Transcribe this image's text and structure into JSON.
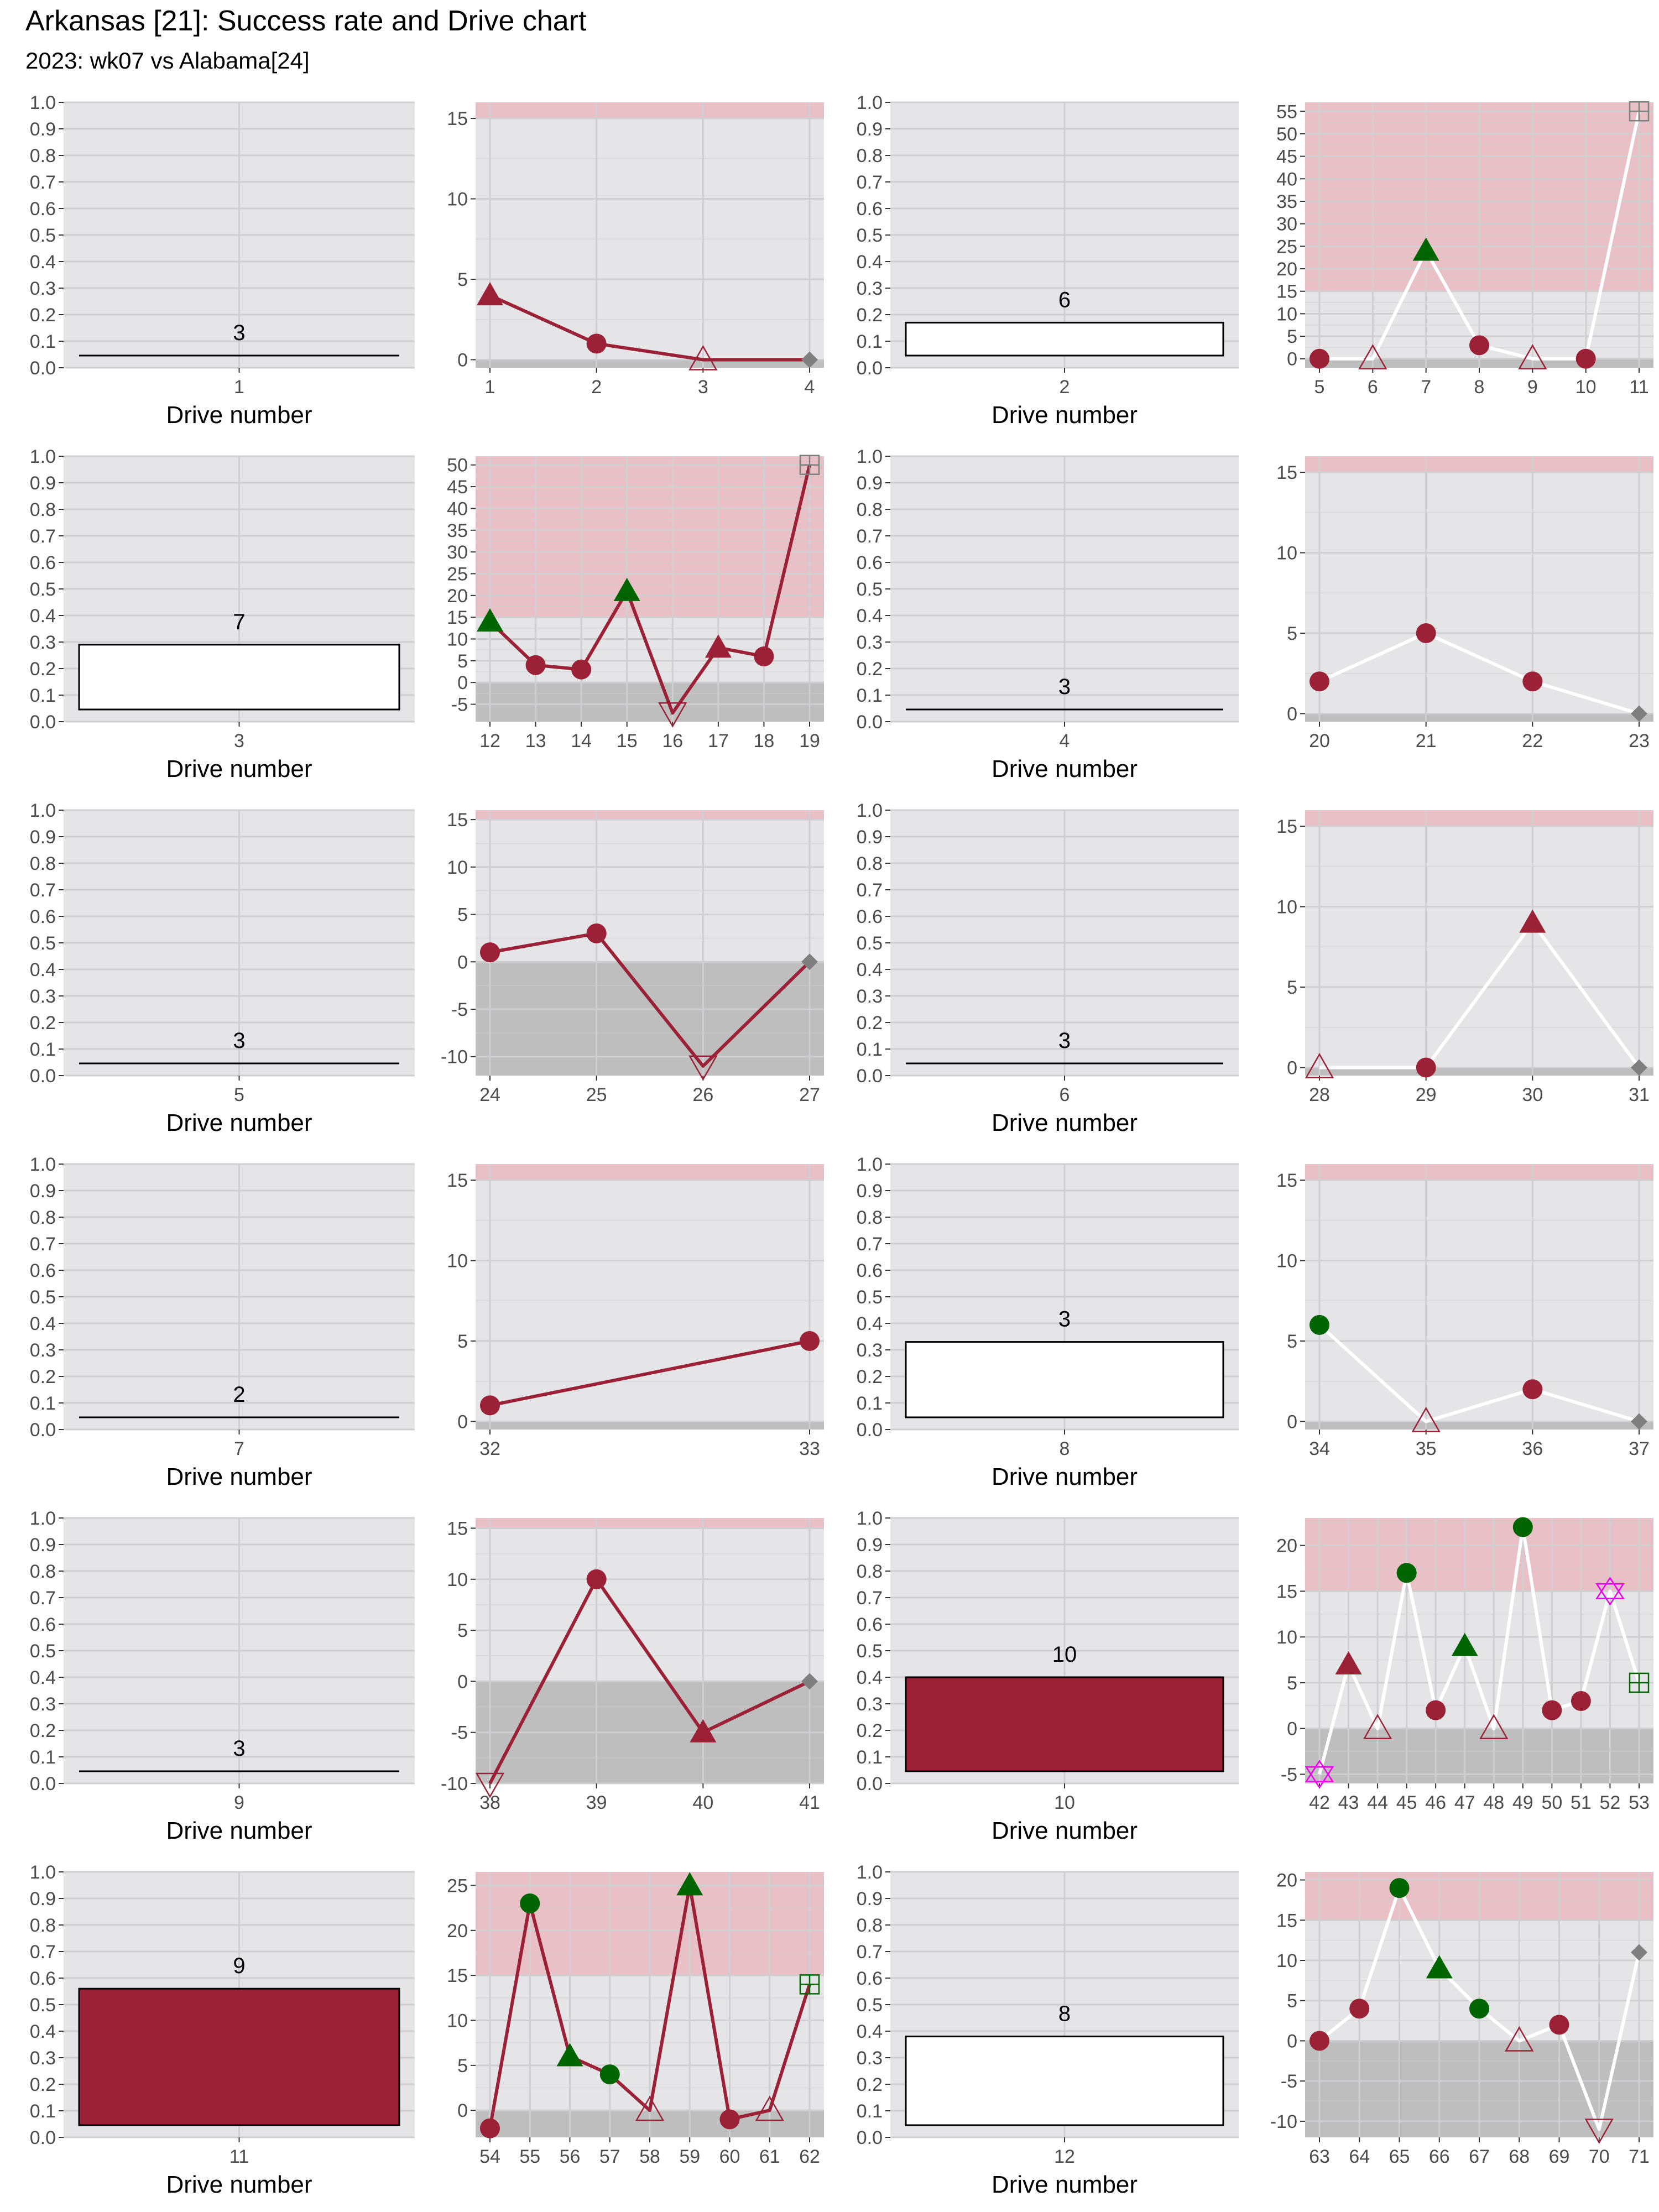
{
  "title": "Arkansas [21]: Success rate and Drive chart",
  "subtitle": "2023: wk07 vs Alabama[24]",
  "colors": {
    "panel_bg": "#e5e5e8",
    "grid": "#cfcfd2",
    "red_zone": "#e9c0c5",
    "negative_zone": "#bebebe",
    "team": "#9b2136",
    "success": "#006400",
    "neutral": "#7f7f7f",
    "penalty": "#ee00ee",
    "white_line": "#ffffff"
  },
  "chart_data": [
    {
      "type": "bar",
      "xlabel": "Drive number",
      "ylim": [
        0,
        1
      ],
      "yticks": [
        0.0,
        0.1,
        0.2,
        0.3,
        0.4,
        0.5,
        0.6,
        0.7,
        0.8,
        0.9,
        1.0
      ],
      "categories": [
        "1"
      ],
      "values": [
        0.0
      ],
      "labels": [
        "3"
      ],
      "fill": "white"
    },
    {
      "type": "line",
      "ylim": [
        -0.5,
        16
      ],
      "yticks": [
        0,
        5,
        10,
        15
      ],
      "red_zone": 15,
      "line_color": "team",
      "x": [
        1,
        2,
        3,
        4
      ],
      "y": [
        4,
        1,
        0,
        0
      ],
      "markers": [
        "tri_fill",
        "circle",
        "tri_open",
        "diamond"
      ],
      "marker_colors": [
        "team",
        "team",
        "team",
        "neutral"
      ]
    },
    {
      "type": "bar",
      "xlabel": "Drive number",
      "ylim": [
        0,
        1
      ],
      "yticks": [
        0.0,
        0.1,
        0.2,
        0.3,
        0.4,
        0.5,
        0.6,
        0.7,
        0.8,
        0.9,
        1.0
      ],
      "categories": [
        "2"
      ],
      "values": [
        0.17
      ],
      "labels": [
        "6"
      ],
      "fill": "white"
    },
    {
      "type": "line",
      "ylim": [
        -2,
        57
      ],
      "yticks": [
        0,
        5,
        10,
        15,
        20,
        25,
        30,
        35,
        40,
        45,
        50,
        55
      ],
      "red_zone": 15,
      "line_color": "white_line",
      "x": [
        5,
        6,
        7,
        8,
        9,
        10,
        11
      ],
      "y": [
        0,
        0,
        24,
        3,
        0,
        0,
        55
      ],
      "markers": [
        "circle",
        "tri_open",
        "tri_fill",
        "circle",
        "tri_open",
        "circle",
        "square_plus"
      ],
      "marker_colors": [
        "team",
        "team",
        "success",
        "team",
        "team",
        "team",
        "neutral"
      ]
    },
    {
      "type": "bar",
      "xlabel": "Drive number",
      "ylim": [
        0,
        1
      ],
      "yticks": [
        0.0,
        0.1,
        0.2,
        0.3,
        0.4,
        0.5,
        0.6,
        0.7,
        0.8,
        0.9,
        1.0
      ],
      "categories": [
        "3"
      ],
      "values": [
        0.29
      ],
      "labels": [
        "7"
      ],
      "fill": "white"
    },
    {
      "type": "line",
      "ylim": [
        -9,
        52
      ],
      "yticks": [
        -5,
        0,
        5,
        10,
        15,
        20,
        25,
        30,
        35,
        40,
        45,
        50
      ],
      "red_zone": 15,
      "line_color": "team",
      "x": [
        12,
        13,
        14,
        15,
        16,
        17,
        18,
        19
      ],
      "y": [
        14,
        4,
        3,
        21,
        -7,
        8,
        6,
        50
      ],
      "markers": [
        "tri_fill",
        "circle",
        "circle",
        "tri_fill",
        "tri_down_open",
        "tri_fill",
        "circle",
        "square_plus"
      ],
      "marker_colors": [
        "success",
        "team",
        "team",
        "success",
        "team",
        "team",
        "team",
        "neutral"
      ]
    },
    {
      "type": "bar",
      "xlabel": "Drive number",
      "ylim": [
        0,
        1
      ],
      "yticks": [
        0.0,
        0.1,
        0.2,
        0.3,
        0.4,
        0.5,
        0.6,
        0.7,
        0.8,
        0.9,
        1.0
      ],
      "categories": [
        "4"
      ],
      "values": [
        0.0
      ],
      "labels": [
        "3"
      ],
      "fill": "white"
    },
    {
      "type": "line",
      "ylim": [
        -0.5,
        16
      ],
      "yticks": [
        0,
        5,
        10,
        15
      ],
      "red_zone": 15,
      "line_color": "white_line",
      "x": [
        20,
        21,
        22,
        23
      ],
      "y": [
        2,
        5,
        2,
        0
      ],
      "markers": [
        "circle",
        "circle",
        "circle",
        "diamond"
      ],
      "marker_colors": [
        "team",
        "team",
        "team",
        "neutral"
      ]
    },
    {
      "type": "bar",
      "xlabel": "Drive number",
      "ylim": [
        0,
        1
      ],
      "yticks": [
        0.0,
        0.1,
        0.2,
        0.3,
        0.4,
        0.5,
        0.6,
        0.7,
        0.8,
        0.9,
        1.0
      ],
      "categories": [
        "5"
      ],
      "values": [
        0.0
      ],
      "labels": [
        "3"
      ],
      "fill": "white"
    },
    {
      "type": "line",
      "ylim": [
        -12,
        16
      ],
      "yticks": [
        -10,
        -5,
        0,
        5,
        10,
        15
      ],
      "red_zone": 15,
      "line_color": "team",
      "x": [
        24,
        25,
        26,
        27
      ],
      "y": [
        1,
        3,
        -11,
        0
      ],
      "markers": [
        "circle",
        "circle",
        "tri_down_open",
        "diamond"
      ],
      "marker_colors": [
        "team",
        "team",
        "team",
        "neutral"
      ]
    },
    {
      "type": "bar",
      "xlabel": "Drive number",
      "ylim": [
        0,
        1
      ],
      "yticks": [
        0.0,
        0.1,
        0.2,
        0.3,
        0.4,
        0.5,
        0.6,
        0.7,
        0.8,
        0.9,
        1.0
      ],
      "categories": [
        "6"
      ],
      "values": [
        0.0
      ],
      "labels": [
        "3"
      ],
      "fill": "white"
    },
    {
      "type": "line",
      "ylim": [
        -0.5,
        16
      ],
      "yticks": [
        0,
        5,
        10,
        15
      ],
      "red_zone": 15,
      "line_color": "white_line",
      "x": [
        28,
        29,
        30,
        31
      ],
      "y": [
        0,
        0,
        9,
        0
      ],
      "markers": [
        "tri_open",
        "circle",
        "tri_fill",
        "diamond"
      ],
      "marker_colors": [
        "team",
        "team",
        "team",
        "neutral"
      ]
    },
    {
      "type": "bar",
      "xlabel": "Drive number",
      "ylim": [
        0,
        1
      ],
      "yticks": [
        0.0,
        0.1,
        0.2,
        0.3,
        0.4,
        0.5,
        0.6,
        0.7,
        0.8,
        0.9,
        1.0
      ],
      "categories": [
        "7"
      ],
      "values": [
        0.0
      ],
      "labels": [
        "2"
      ],
      "fill": "white"
    },
    {
      "type": "line",
      "ylim": [
        -0.5,
        16
      ],
      "yticks": [
        0,
        5,
        10,
        15
      ],
      "red_zone": 15,
      "line_color": "team",
      "x": [
        32,
        33
      ],
      "y": [
        1,
        5
      ],
      "markers": [
        "circle",
        "circle"
      ],
      "marker_colors": [
        "team",
        "team"
      ]
    },
    {
      "type": "bar",
      "xlabel": "Drive number",
      "ylim": [
        0,
        1
      ],
      "yticks": [
        0.0,
        0.1,
        0.2,
        0.3,
        0.4,
        0.5,
        0.6,
        0.7,
        0.8,
        0.9,
        1.0
      ],
      "categories": [
        "8"
      ],
      "values": [
        0.33
      ],
      "labels": [
        "3"
      ],
      "fill": "white"
    },
    {
      "type": "line",
      "ylim": [
        -0.5,
        16
      ],
      "yticks": [
        0,
        5,
        10,
        15
      ],
      "red_zone": 15,
      "line_color": "white_line",
      "x": [
        34,
        35,
        36,
        37
      ],
      "y": [
        6,
        0,
        2,
        0
      ],
      "markers": [
        "circle",
        "tri_open",
        "circle",
        "diamond"
      ],
      "marker_colors": [
        "success",
        "team",
        "team",
        "neutral"
      ]
    },
    {
      "type": "bar",
      "xlabel": "Drive number",
      "ylim": [
        0,
        1
      ],
      "yticks": [
        0.0,
        0.1,
        0.2,
        0.3,
        0.4,
        0.5,
        0.6,
        0.7,
        0.8,
        0.9,
        1.0
      ],
      "categories": [
        "9"
      ],
      "values": [
        0.0
      ],
      "labels": [
        "3"
      ],
      "fill": "white"
    },
    {
      "type": "line",
      "ylim": [
        -10,
        16
      ],
      "yticks": [
        -10,
        -5,
        0,
        5,
        10,
        15
      ],
      "red_zone": 15,
      "line_color": "team",
      "x": [
        38,
        39,
        40,
        41
      ],
      "y": [
        -10,
        10,
        -5,
        0
      ],
      "markers": [
        "tri_down_open",
        "circle",
        "tri_fill",
        "diamond"
      ],
      "marker_colors": [
        "team",
        "team",
        "team",
        "neutral"
      ]
    },
    {
      "type": "bar",
      "xlabel": "Drive number",
      "ylim": [
        0,
        1
      ],
      "yticks": [
        0.0,
        0.1,
        0.2,
        0.3,
        0.4,
        0.5,
        0.6,
        0.7,
        0.8,
        0.9,
        1.0
      ],
      "categories": [
        "10"
      ],
      "values": [
        0.4
      ],
      "labels": [
        "10"
      ],
      "fill": "team"
    },
    {
      "type": "line",
      "ylim": [
        -6,
        23
      ],
      "yticks": [
        -5,
        0,
        5,
        10,
        15,
        20
      ],
      "red_zone": 15,
      "line_color": "white_line",
      "x": [
        42,
        43,
        44,
        45,
        46,
        47,
        48,
        49,
        50,
        51,
        52,
        53
      ],
      "y": [
        -5,
        7,
        0,
        17,
        2,
        9,
        0,
        22,
        2,
        3,
        15,
        5
      ],
      "markers": [
        "star_open",
        "tri_fill",
        "tri_open",
        "circle",
        "circle",
        "tri_fill",
        "tri_open",
        "circle",
        "circle",
        "circle",
        "star_open",
        "square_plus"
      ],
      "marker_colors": [
        "penalty",
        "team",
        "team",
        "success",
        "team",
        "success",
        "team",
        "success",
        "team",
        "team",
        "penalty",
        "success"
      ]
    },
    {
      "type": "bar",
      "xlabel": "Drive number",
      "ylim": [
        0,
        1
      ],
      "yticks": [
        0.0,
        0.1,
        0.2,
        0.3,
        0.4,
        0.5,
        0.6,
        0.7,
        0.8,
        0.9,
        1.0
      ],
      "categories": [
        "11"
      ],
      "values": [
        0.56
      ],
      "labels": [
        "9"
      ],
      "fill": "team"
    },
    {
      "type": "line",
      "ylim": [
        -3,
        26.5
      ],
      "yticks": [
        0,
        5,
        10,
        15,
        20,
        25
      ],
      "red_zone": 15,
      "line_color": "team",
      "x": [
        54,
        55,
        56,
        57,
        58,
        59,
        60,
        61,
        62
      ],
      "y": [
        -2,
        23,
        6,
        4,
        0,
        25,
        -1,
        0,
        14
      ],
      "markers": [
        "circle",
        "circle",
        "tri_fill",
        "circle",
        "tri_open",
        "tri_fill",
        "circle",
        "tri_open",
        "square_plus"
      ],
      "marker_colors": [
        "team",
        "success",
        "success",
        "success",
        "team",
        "success",
        "team",
        "team",
        "success"
      ]
    },
    {
      "type": "bar",
      "xlabel": "Drive number",
      "ylim": [
        0,
        1
      ],
      "yticks": [
        0.0,
        0.1,
        0.2,
        0.3,
        0.4,
        0.5,
        0.6,
        0.7,
        0.8,
        0.9,
        1.0
      ],
      "categories": [
        "12"
      ],
      "values": [
        0.38
      ],
      "labels": [
        "8"
      ],
      "fill": "white"
    },
    {
      "type": "line",
      "ylim": [
        -12,
        21
      ],
      "yticks": [
        -10,
        -5,
        0,
        5,
        10,
        15,
        20
      ],
      "red_zone": 15,
      "line_color": "white_line",
      "x": [
        63,
        64,
        65,
        66,
        67,
        68,
        69,
        70,
        71
      ],
      "y": [
        0,
        4,
        19,
        9,
        4,
        0,
        2,
        -11,
        11
      ],
      "markers": [
        "circle",
        "circle",
        "circle",
        "tri_fill",
        "circle",
        "tri_open",
        "circle",
        "tri_down_open",
        "diamond"
      ],
      "marker_colors": [
        "team",
        "team",
        "success",
        "success",
        "success",
        "team",
        "team",
        "team",
        "neutral"
      ]
    }
  ]
}
